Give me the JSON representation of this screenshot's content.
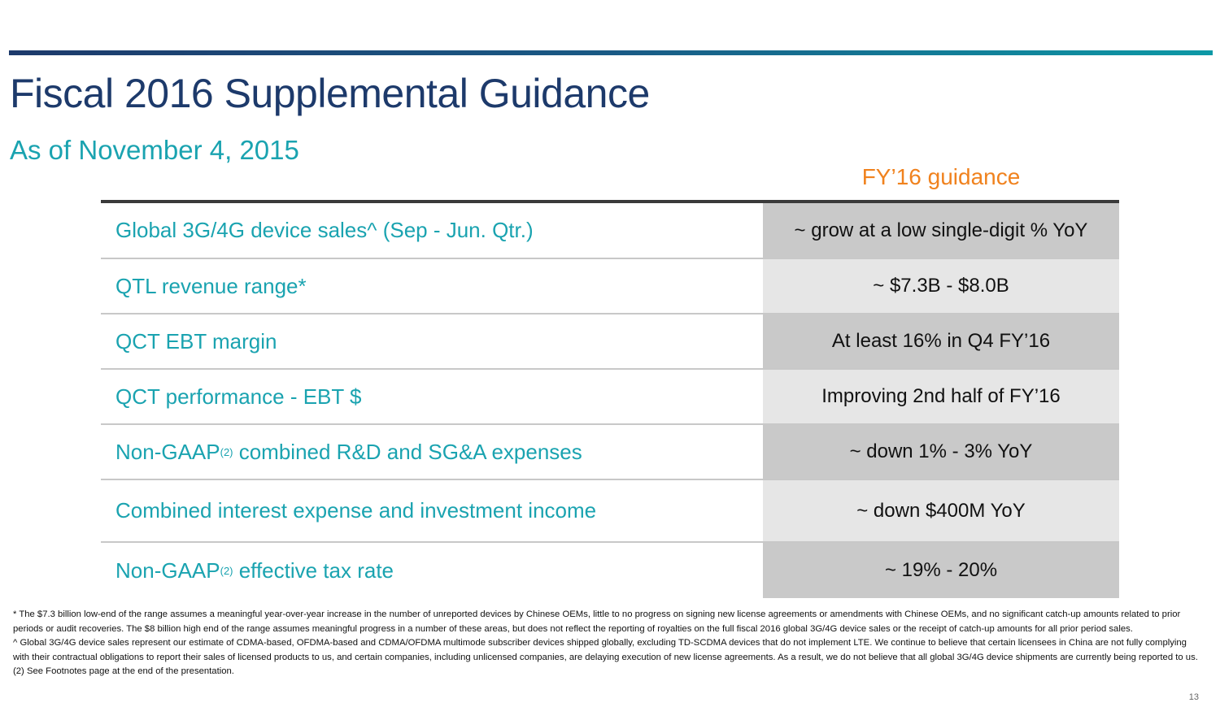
{
  "title": "Fiscal 2016 Supplemental Guidance",
  "subtitle": "As of November 4, 2015",
  "column_header": "FY’16 guidance",
  "rows": [
    {
      "label": "Global 3G/4G device sales^ (Sep - Jun. Qtr.)",
      "value": "~ grow at a low single-digit % YoY"
    },
    {
      "label": "QTL revenue range*",
      "value": "~ $7.3B - $8.0B"
    },
    {
      "label": "QCT EBT margin",
      "value": "At least 16% in Q4 FY’16"
    },
    {
      "label": "QCT performance - EBT $",
      "value": "Improving 2nd half of FY’16"
    },
    {
      "label_pre": "Non-GAAP",
      "label_sup": "(2)",
      "label_post": " combined R&D and SG&A expenses",
      "value": "~ down 1% - 3% YoY"
    },
    {
      "label": "Combined interest expense and investment income",
      "value": "~ down $400M YoY"
    },
    {
      "label_pre": "Non-GAAP",
      "label_sup": "(2)",
      "label_post": " effective tax rate",
      "value": "~ 19% - 20%"
    }
  ],
  "footnotes": [
    "* The $7.3 billion low-end of the range assumes a meaningful year-over-year increase in the number of unreported devices by Chinese OEMs, little to no progress on signing new license agreements or amendments with Chinese OEMs, and no significant catch-up amounts related to prior periods or audit recoveries. The $8 billion high end of the range assumes meaningful progress in a number of these areas, but does not reflect the reporting of royalties on the full fiscal 2016 global 3G/4G device sales or the receipt of catch-up amounts for all prior period sales.",
    "^ Global 3G/4G device sales represent our estimate of CDMA-based, OFDMA-based and CDMA/OFDMA multimode subscriber devices shipped globally, excluding TD-SCDMA devices that do not implement LTE. We continue to believe that certain licensees in China are not fully complying with their contractual obligations to report their sales of licensed products to us, and certain companies, including unlicensed companies, are delaying execution of new license agreements. As a result, we do not believe that all global 3G/4G device shipments are currently being reported to us.",
    "(2) See Footnotes page at the end of the presentation."
  ],
  "page_number": "13"
}
